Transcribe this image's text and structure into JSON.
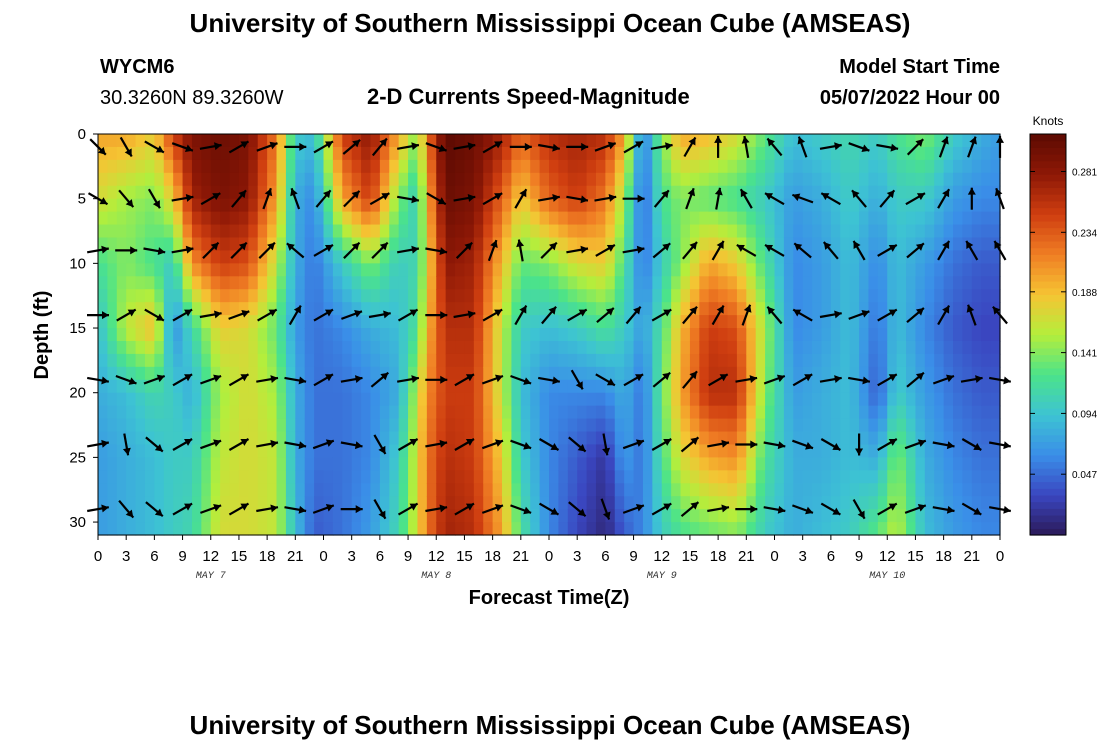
{
  "header": {
    "title_top": "University of Southern Mississippi Ocean Cube (AMSEAS)",
    "station": "WYCM6",
    "coords": "30.3260N  89.3260W",
    "subtitle": "2-D Currents Speed-Magnitude",
    "model_label": "Model Start Time",
    "model_value": "05/07/2022 Hour 00",
    "title_bottom": "University of Southern Mississippi Ocean Cube (AMSEAS)"
  },
  "chart_data": {
    "type": "heatmap",
    "title": "2-D Currents Speed-Magnitude",
    "xlabel": "Forecast Time(Z)",
    "ylabel": "Depth (ft)",
    "xlim": [
      0,
      96
    ],
    "ylim": [
      31,
      0
    ],
    "x_tick_labels": [
      "0",
      "3",
      "6",
      "9",
      "12",
      "15",
      "18",
      "21",
      "0",
      "3",
      "6",
      "9",
      "12",
      "15",
      "18",
      "21",
      "0",
      "3",
      "6",
      "9",
      "12",
      "15",
      "18",
      "21",
      "0",
      "3",
      "6",
      "9",
      "12",
      "15",
      "18",
      "21",
      "0"
    ],
    "y_ticks": [
      0,
      5,
      10,
      15,
      20,
      25,
      30
    ],
    "date_labels": [
      {
        "hour": 12,
        "label": "MAY 7"
      },
      {
        "hour": 36,
        "label": "MAY 8"
      },
      {
        "hour": 60,
        "label": "MAY 9"
      },
      {
        "hour": 84,
        "label": "MAY 10"
      }
    ],
    "colorbar": {
      "label": "Knots",
      "ticks": [
        0.281,
        0.234,
        0.188,
        0.141,
        0.094,
        0.047
      ],
      "range": [
        0,
        0.31
      ],
      "colors": [
        "#2b1957",
        "#3a46c0",
        "#3a8ee8",
        "#3dc3d3",
        "#4be38a",
        "#b4ee3c",
        "#f5c433",
        "#f07e24",
        "#cf3e10",
        "#8e1806",
        "#5c0a02"
      ]
    },
    "speed_columns": [
      {
        "hour": 0,
        "speeds": [
          0.2,
          0.17,
          0.12,
          0.09,
          0.08,
          0.07,
          0.07
        ]
      },
      {
        "hour": 3,
        "speeds": [
          0.2,
          0.15,
          0.14,
          0.16,
          0.09,
          0.08,
          0.08
        ]
      },
      {
        "hour": 6,
        "speeds": [
          0.18,
          0.14,
          0.12,
          0.19,
          0.11,
          0.09,
          0.09
        ]
      },
      {
        "hour": 8,
        "speeds": [
          0.25,
          0.18,
          0.1,
          0.06,
          0.1,
          0.1,
          0.1
        ]
      },
      {
        "hour": 10,
        "speeds": [
          0.29,
          0.27,
          0.21,
          0.11,
          0.08,
          0.1,
          0.11
        ]
      },
      {
        "hour": 13,
        "speeds": [
          0.3,
          0.29,
          0.25,
          0.18,
          0.15,
          0.16,
          0.17
        ]
      },
      {
        "hour": 16,
        "speeds": [
          0.29,
          0.28,
          0.24,
          0.17,
          0.17,
          0.17,
          0.17
        ]
      },
      {
        "hour": 19,
        "speeds": [
          0.22,
          0.2,
          0.16,
          0.13,
          0.15,
          0.16,
          0.16
        ]
      },
      {
        "hour": 21,
        "speeds": [
          0.1,
          0.08,
          0.08,
          0.07,
          0.08,
          0.08,
          0.09
        ]
      },
      {
        "hour": 23,
        "speeds": [
          0.09,
          0.06,
          0.05,
          0.05,
          0.05,
          0.05,
          0.04
        ]
      },
      {
        "hour": 26,
        "speeds": [
          0.25,
          0.2,
          0.1,
          0.06,
          0.05,
          0.05,
          0.05
        ]
      },
      {
        "hour": 29,
        "speeds": [
          0.28,
          0.25,
          0.14,
          0.08,
          0.06,
          0.06,
          0.07
        ]
      },
      {
        "hour": 32,
        "speeds": [
          0.2,
          0.14,
          0.1,
          0.09,
          0.08,
          0.1,
          0.11
        ]
      },
      {
        "hour": 34,
        "speeds": [
          0.14,
          0.1,
          0.11,
          0.12,
          0.16,
          0.17,
          0.17
        ]
      },
      {
        "hour": 35,
        "speeds": [
          0.22,
          0.19,
          0.17,
          0.19,
          0.21,
          0.22,
          0.22
        ]
      },
      {
        "hour": 37,
        "speeds": [
          0.31,
          0.3,
          0.28,
          0.26,
          0.25,
          0.26,
          0.27
        ]
      },
      {
        "hour": 40,
        "speeds": [
          0.3,
          0.29,
          0.27,
          0.26,
          0.25,
          0.25,
          0.26
        ]
      },
      {
        "hour": 43,
        "speeds": [
          0.27,
          0.23,
          0.19,
          0.16,
          0.16,
          0.18,
          0.2
        ]
      },
      {
        "hour": 45,
        "speeds": [
          0.23,
          0.18,
          0.13,
          0.1,
          0.09,
          0.1,
          0.12
        ]
      },
      {
        "hour": 48,
        "speeds": [
          0.26,
          0.23,
          0.14,
          0.09,
          0.06,
          0.06,
          0.06
        ]
      },
      {
        "hour": 51,
        "speeds": [
          0.27,
          0.25,
          0.17,
          0.1,
          0.06,
          0.04,
          0.03
        ]
      },
      {
        "hour": 54,
        "speeds": [
          0.26,
          0.22,
          0.18,
          0.12,
          0.06,
          0.02,
          0.01
        ]
      },
      {
        "hour": 56,
        "speeds": [
          0.2,
          0.15,
          0.12,
          0.1,
          0.08,
          0.07,
          0.04
        ]
      },
      {
        "hour": 58,
        "speeds": [
          0.05,
          0.04,
          0.05,
          0.07,
          0.05,
          0.05,
          0.06
        ]
      },
      {
        "hour": 60,
        "speeds": [
          0.14,
          0.12,
          0.1,
          0.12,
          0.13,
          0.12,
          0.1
        ]
      },
      {
        "hour": 62,
        "speeds": [
          0.2,
          0.14,
          0.14,
          0.19,
          0.2,
          0.17,
          0.12
        ]
      },
      {
        "hour": 65,
        "speeds": [
          0.19,
          0.13,
          0.2,
          0.25,
          0.26,
          0.2,
          0.13
        ]
      },
      {
        "hour": 68,
        "speeds": [
          0.17,
          0.12,
          0.18,
          0.24,
          0.26,
          0.21,
          0.14
        ]
      },
      {
        "hour": 71,
        "speeds": [
          0.13,
          0.1,
          0.12,
          0.15,
          0.14,
          0.12,
          0.1
        ]
      },
      {
        "hour": 74,
        "speeds": [
          0.09,
          0.07,
          0.06,
          0.06,
          0.07,
          0.08,
          0.08
        ]
      },
      {
        "hour": 77,
        "speeds": [
          0.1,
          0.08,
          0.07,
          0.07,
          0.08,
          0.08,
          0.09
        ]
      },
      {
        "hour": 80,
        "speeds": [
          0.11,
          0.1,
          0.09,
          0.09,
          0.09,
          0.09,
          0.1
        ]
      },
      {
        "hour": 83,
        "speeds": [
          0.1,
          0.08,
          0.06,
          0.05,
          0.04,
          0.08,
          0.13
        ]
      },
      {
        "hour": 85,
        "speeds": [
          0.12,
          0.1,
          0.09,
          0.09,
          0.1,
          0.14,
          0.16
        ]
      },
      {
        "hour": 88,
        "speeds": [
          0.14,
          0.1,
          0.07,
          0.06,
          0.07,
          0.08,
          0.09
        ]
      },
      {
        "hour": 91,
        "speeds": [
          0.1,
          0.07,
          0.05,
          0.04,
          0.05,
          0.06,
          0.07
        ]
      },
      {
        "hour": 94,
        "speeds": [
          0.08,
          0.06,
          0.04,
          0.03,
          0.04,
          0.05,
          0.06
        ]
      },
      {
        "hour": 96,
        "speeds": [
          0.07,
          0.06,
          0.04,
          0.03,
          0.04,
          0.05,
          0.06
        ]
      }
    ],
    "vector_depths": [
      1,
      5,
      9,
      14,
      19,
      24,
      29
    ],
    "vector_hours": [
      0,
      3,
      6,
      9,
      12,
      15,
      18,
      21,
      24,
      27,
      30,
      33,
      36,
      39,
      42,
      45,
      48,
      51,
      54,
      57,
      60,
      63,
      66,
      69,
      72,
      75,
      78,
      81,
      84,
      87,
      90,
      93,
      96
    ],
    "vector_angles": [
      [
        135,
        150,
        120,
        110,
        80,
        60,
        70,
        90,
        60,
        50,
        40,
        80,
        110,
        80,
        60,
        90,
        100,
        90,
        70,
        60,
        80,
        30,
        0,
        350,
        320,
        340,
        80,
        110,
        100,
        45,
        20,
        20,
        0
      ],
      [
        120,
        140,
        150,
        80,
        60,
        40,
        20,
        340,
        40,
        45,
        60,
        100,
        120,
        80,
        60,
        30,
        80,
        100,
        80,
        90,
        40,
        20,
        10,
        330,
        300,
        290,
        300,
        320,
        40,
        60,
        30,
        0,
        340
      ],
      [
        80,
        90,
        100,
        80,
        45,
        45,
        45,
        310,
        60,
        45,
        45,
        80,
        100,
        45,
        20,
        350,
        45,
        80,
        60,
        80,
        50,
        40,
        30,
        300,
        300,
        310,
        320,
        330,
        60,
        50,
        30,
        330,
        330
      ],
      [
        90,
        60,
        120,
        60,
        80,
        70,
        60,
        30,
        60,
        70,
        80,
        60,
        90,
        80,
        60,
        30,
        40,
        60,
        50,
        40,
        60,
        40,
        30,
        20,
        320,
        300,
        80,
        70,
        60,
        50,
        30,
        340,
        320
      ],
      [
        100,
        110,
        70,
        60,
        70,
        60,
        80,
        100,
        60,
        80,
        50,
        80,
        90,
        60,
        70,
        110,
        100,
        150,
        120,
        60,
        50,
        40,
        60,
        80,
        70,
        60,
        80,
        100,
        60,
        50,
        70,
        80,
        100
      ],
      [
        80,
        170,
        130,
        60,
        70,
        60,
        80,
        100,
        70,
        100,
        150,
        60,
        80,
        60,
        70,
        110,
        120,
        130,
        170,
        70,
        60,
        50,
        80,
        90,
        100,
        110,
        120,
        180,
        60,
        70,
        100,
        120,
        100
      ],
      [
        80,
        140,
        130,
        60,
        70,
        60,
        80,
        100,
        70,
        90,
        150,
        60,
        80,
        60,
        70,
        110,
        120,
        130,
        160,
        70,
        60,
        50,
        80,
        90,
        100,
        110,
        120,
        150,
        60,
        70,
        100,
        120,
        100
      ]
    ]
  }
}
